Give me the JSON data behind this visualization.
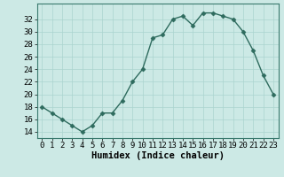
{
  "x": [
    0,
    1,
    2,
    3,
    4,
    5,
    6,
    7,
    8,
    9,
    10,
    11,
    12,
    13,
    14,
    15,
    16,
    17,
    18,
    19,
    20,
    21,
    22,
    23
  ],
  "y": [
    18,
    17,
    16,
    15,
    14,
    15,
    17,
    17,
    19,
    22,
    24,
    29,
    29.5,
    32,
    32.5,
    31,
    33,
    33,
    32.5,
    32,
    30,
    27,
    23,
    20
  ],
  "line_color": "#2e6b5e",
  "marker": "D",
  "marker_size": 2.5,
  "bg_color": "#cce9e5",
  "grid_color": "#aad4cf",
  "xlabel": "Humidex (Indice chaleur)",
  "xlim": [
    -0.5,
    23.5
  ],
  "ylim": [
    13,
    34.5
  ],
  "yticks": [
    14,
    16,
    18,
    20,
    22,
    24,
    26,
    28,
    30,
    32
  ],
  "xticks": [
    0,
    1,
    2,
    3,
    4,
    5,
    6,
    7,
    8,
    9,
    10,
    11,
    12,
    13,
    14,
    15,
    16,
    17,
    18,
    19,
    20,
    21,
    22,
    23
  ],
  "xlabel_fontsize": 7.5,
  "tick_fontsize": 6.5,
  "linewidth": 1.0
}
